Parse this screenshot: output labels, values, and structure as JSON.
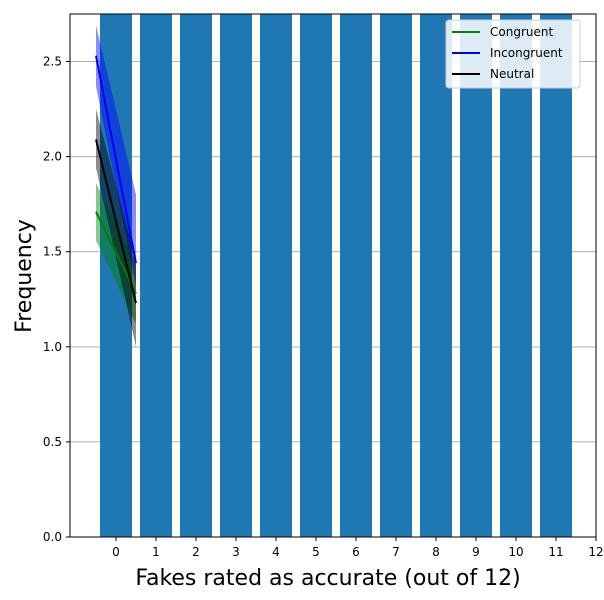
{
  "chart_data": {
    "type": "bar",
    "title": "",
    "xlabel": "Fakes rated as accurate (out of 12)",
    "ylabel": "Frequency",
    "xlim": [
      -1.15,
      12.0
    ],
    "ylim": [
      0,
      2.75
    ],
    "x_ticks": [
      0,
      1,
      2,
      3,
      4,
      5,
      6,
      7,
      8,
      9,
      10,
      11,
      12
    ],
    "y_ticks": [
      "0.0",
      "0.5",
      "1.0",
      "1.5",
      "2.0",
      "2.5"
    ],
    "y_tick_values": [
      0,
      0.5,
      1.0,
      1.5,
      2.0,
      2.5
    ],
    "grid": "y",
    "bar_color": "#1f77b4",
    "bars": [
      {
        "x": 0,
        "height": 2.75
      },
      {
        "x": 1,
        "height": 2.75
      },
      {
        "x": 2,
        "height": 2.75
      },
      {
        "x": 3,
        "height": 2.75
      },
      {
        "x": 4,
        "height": 2.75
      },
      {
        "x": 5,
        "height": 2.75
      },
      {
        "x": 6,
        "height": 2.75
      },
      {
        "x": 7,
        "height": 2.75
      },
      {
        "x": 8,
        "height": 2.75
      },
      {
        "x": 9,
        "height": 2.75
      },
      {
        "x": 10,
        "height": 2.75
      },
      {
        "x": 11,
        "height": 2.75
      }
    ],
    "bar_width": 0.8,
    "series": [
      {
        "name": "Congruent",
        "color": "#008000",
        "x": [
          -0.5,
          0.5
        ],
        "values": [
          1.71,
          1.28
        ],
        "lower": [
          1.56,
          1.12
        ],
        "upper": [
          1.86,
          1.44
        ]
      },
      {
        "name": "Incongruent",
        "color": "#0000ff",
        "x": [
          -0.5,
          0.5
        ],
        "values": [
          2.53,
          1.44
        ],
        "lower": [
          2.37,
          1.32
        ],
        "upper": [
          2.69,
          1.8
        ]
      },
      {
        "name": "Neutral",
        "color": "#000000",
        "x": [
          -0.5,
          0.5
        ],
        "values": [
          2.09,
          1.23
        ],
        "lower": [
          1.94,
          1.0
        ],
        "upper": [
          2.25,
          1.45
        ]
      }
    ],
    "legend": "top-right"
  }
}
